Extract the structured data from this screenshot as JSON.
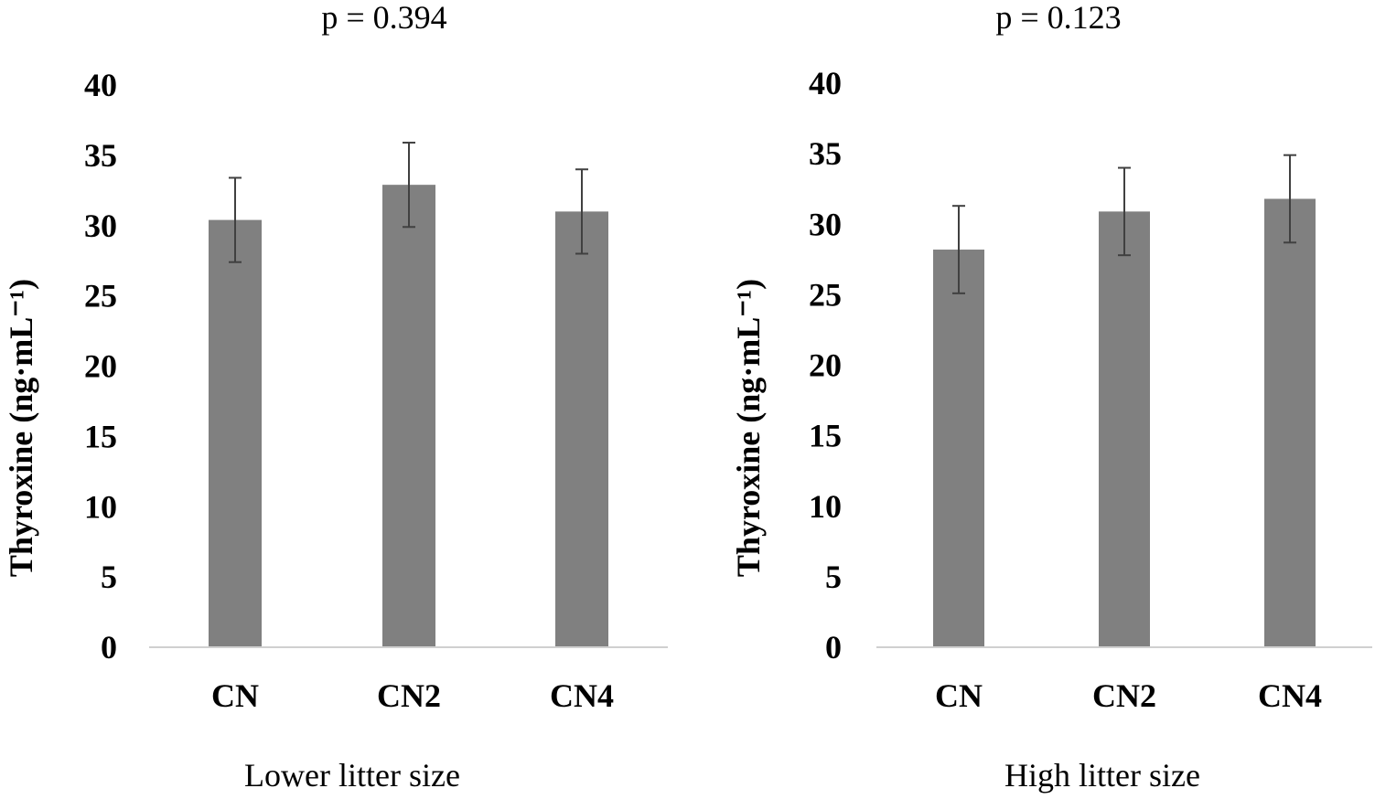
{
  "chart_data": [
    {
      "type": "bar",
      "title": "p = 0.394",
      "xlabel": "Lower litter size",
      "ylabel": "Thyroxine (ng·mL⁻¹)",
      "categories": [
        "CN",
        "CN2",
        "CN4"
      ],
      "values": [
        30.4,
        32.9,
        31.0
      ],
      "errors": [
        3.0,
        3.0,
        3.0
      ],
      "ylim": [
        0,
        40
      ],
      "yticks": [
        "0",
        "5",
        "10",
        "15",
        "20",
        "25",
        "30",
        "35",
        "40"
      ],
      "bar_color": "#808080",
      "error_color": "#404040",
      "grid": false
    },
    {
      "type": "bar",
      "title": "p = 0.123",
      "xlabel": "High litter size",
      "ylabel": "Thyroxine (ng·mL⁻¹)",
      "categories": [
        "CN",
        "CN2",
        "CN4"
      ],
      "values": [
        28.2,
        30.9,
        31.8
      ],
      "errors": [
        3.1,
        3.1,
        3.1
      ],
      "ylim": [
        0,
        40
      ],
      "yticks": [
        "0",
        "5",
        "10",
        "15",
        "20",
        "25",
        "30",
        "35",
        "40"
      ],
      "bar_color": "#808080",
      "error_color": "#404040",
      "grid": false
    }
  ]
}
